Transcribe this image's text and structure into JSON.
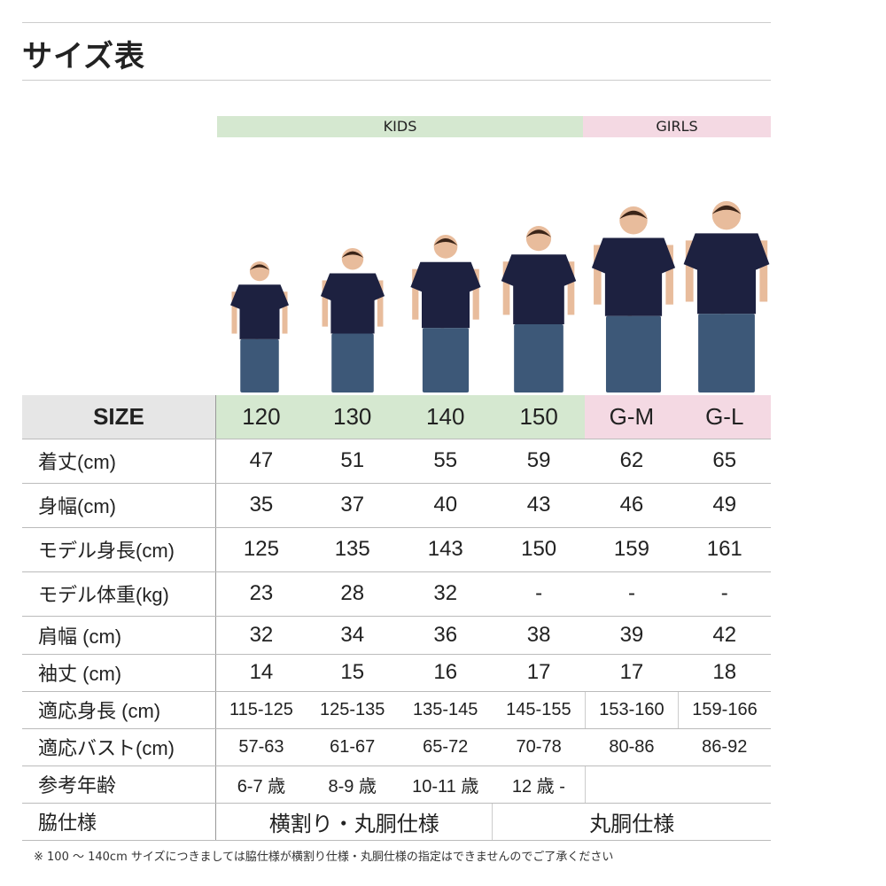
{
  "title": "サイズ表",
  "groups": {
    "kids": "KIDS",
    "girls": "GIRLS"
  },
  "colors": {
    "kids": "#d5e8d0",
    "girls": "#f4d9e3",
    "header_label": "#e6e6e6",
    "shirt": "#1d2140",
    "jeans": "#3d5878"
  },
  "table": {
    "header": {
      "label": "SIZE",
      "sizes": [
        "120",
        "130",
        "140",
        "150",
        "G-M",
        "G-L"
      ]
    },
    "rows": [
      {
        "label": "着丈(cm)",
        "values": [
          "47",
          "51",
          "55",
          "59",
          "62",
          "65"
        ]
      },
      {
        "label": "身幅(cm)",
        "values": [
          "35",
          "37",
          "40",
          "43",
          "46",
          "49"
        ]
      },
      {
        "label": "モデル身長(cm)",
        "values": [
          "125",
          "135",
          "143",
          "150",
          "159",
          "161"
        ]
      },
      {
        "label": "モデル体重(kg)",
        "values": [
          "23",
          "28",
          "32",
          "-",
          "-",
          "-"
        ]
      },
      {
        "label": "肩幅 (cm)",
        "values": [
          "32",
          "34",
          "36",
          "38",
          "39",
          "42"
        ]
      },
      {
        "label": "袖丈 (cm)",
        "values": [
          "14",
          "15",
          "16",
          "17",
          "17",
          "18"
        ]
      },
      {
        "label": "適応身長 (cm)",
        "values": [
          "115-125",
          "125-135",
          "135-145",
          "145-155",
          "153-160",
          "159-166"
        ]
      },
      {
        "label": "適応バスト(cm)",
        "values": [
          "57-63",
          "61-67",
          "65-72",
          "70-78",
          "80-86",
          "86-92"
        ]
      },
      {
        "label": "参考年齢",
        "values": [
          "6-7 歳",
          "8-9 歳",
          "10-11 歳",
          "12 歳 -",
          ""
        ]
      },
      {
        "label": "脇仕様",
        "values": [
          "横割り・丸胴仕様",
          "丸胴仕様"
        ]
      }
    ]
  },
  "footnote": "※ 100 ～ 140cm サイズにつきましては脇仕様が横割り仕様・丸胴仕様の指定はできませんのでご了承ください"
}
